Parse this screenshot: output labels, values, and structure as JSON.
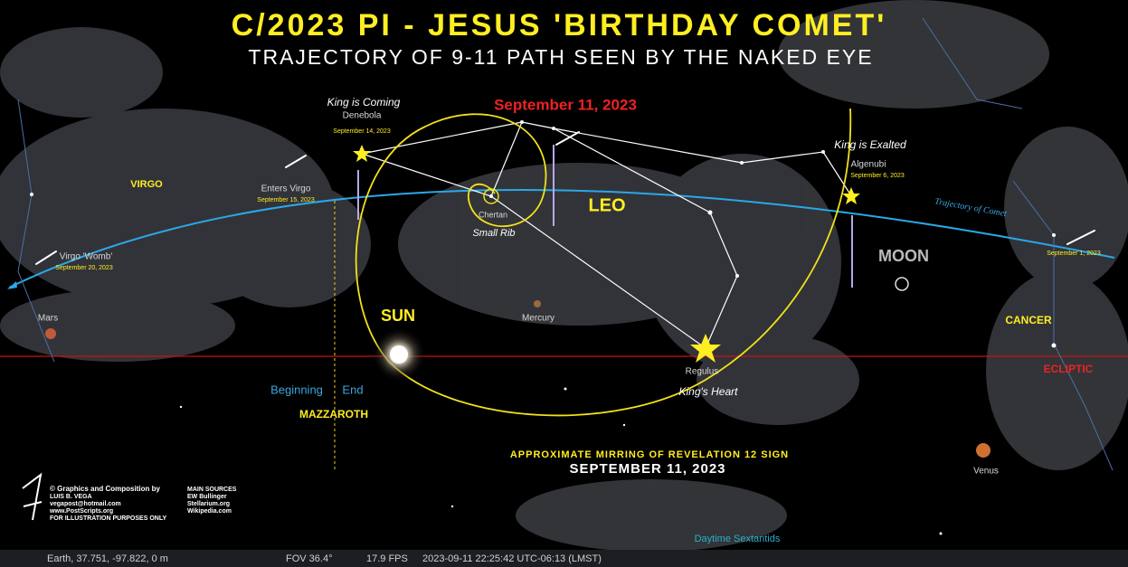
{
  "header": {
    "title": "C/2023 PI - JESUS 'BIRTHDAY COMET'",
    "subtitle": "TRAJECTORY OF 9-11 PATH SEEN BY THE NAKED EYE",
    "date": "September 11, 2023"
  },
  "labels": {
    "king_coming": "King is Coming",
    "denebola": "Denebola",
    "denebola_date": "September 14, 2023",
    "enters_virgo": "Enters Virgo",
    "enters_virgo_date": "September 15, 2023",
    "virgo": "VIRGO",
    "virgo_womb": "Virgo 'Womb'",
    "virgo_womb_date": "September 20, 2023",
    "chertan": "Chertan",
    "small_rib": "Small Rib",
    "leo": "LEO",
    "king_exalted": "King is Exalted",
    "algenubi": "Algenubi",
    "algenubi_date": "September 6, 2023",
    "trajectory": "Trajectory of Comet",
    "sept1": "September 1, 2023",
    "moon": "MOON",
    "cancer": "CANCER",
    "ecliptic": "ECLIPTIC",
    "mars": "Mars",
    "sun": "SUN",
    "mercury": "Mercury",
    "regulus": "Regulus",
    "kings_heart": "King's Heart",
    "beginning": "Beginning",
    "end": "End",
    "mazzaroth": "MAZZAROTH",
    "venus": "Venus",
    "sextantids": "Daytime Sextantids"
  },
  "caption": {
    "line1": "APPROXIMATE MIRRING OF REVELATION 12 SIGN",
    "line2": "SEPTEMBER 11, 2023"
  },
  "credits": {
    "lines": [
      "© Graphics and Composition by",
      "LUIS B. VEGA",
      "vegapost@hotmail.com",
      "www.PostScripts.org",
      "FOR ILLUSTRATION PURPOSES ONLY"
    ],
    "sources": [
      "MAIN SOURCES",
      "EW Bullinger",
      "Stellarium.org",
      "Wikipedia.com"
    ]
  },
  "status_bar": {
    "location": "Earth, 37.751, -97.822, 0 m",
    "fov": "FOV 36.4°",
    "fps": "17.9 FPS",
    "datetime": "2023-09-11 22:25:42 UTC-06:13 (LMST)"
  }
}
